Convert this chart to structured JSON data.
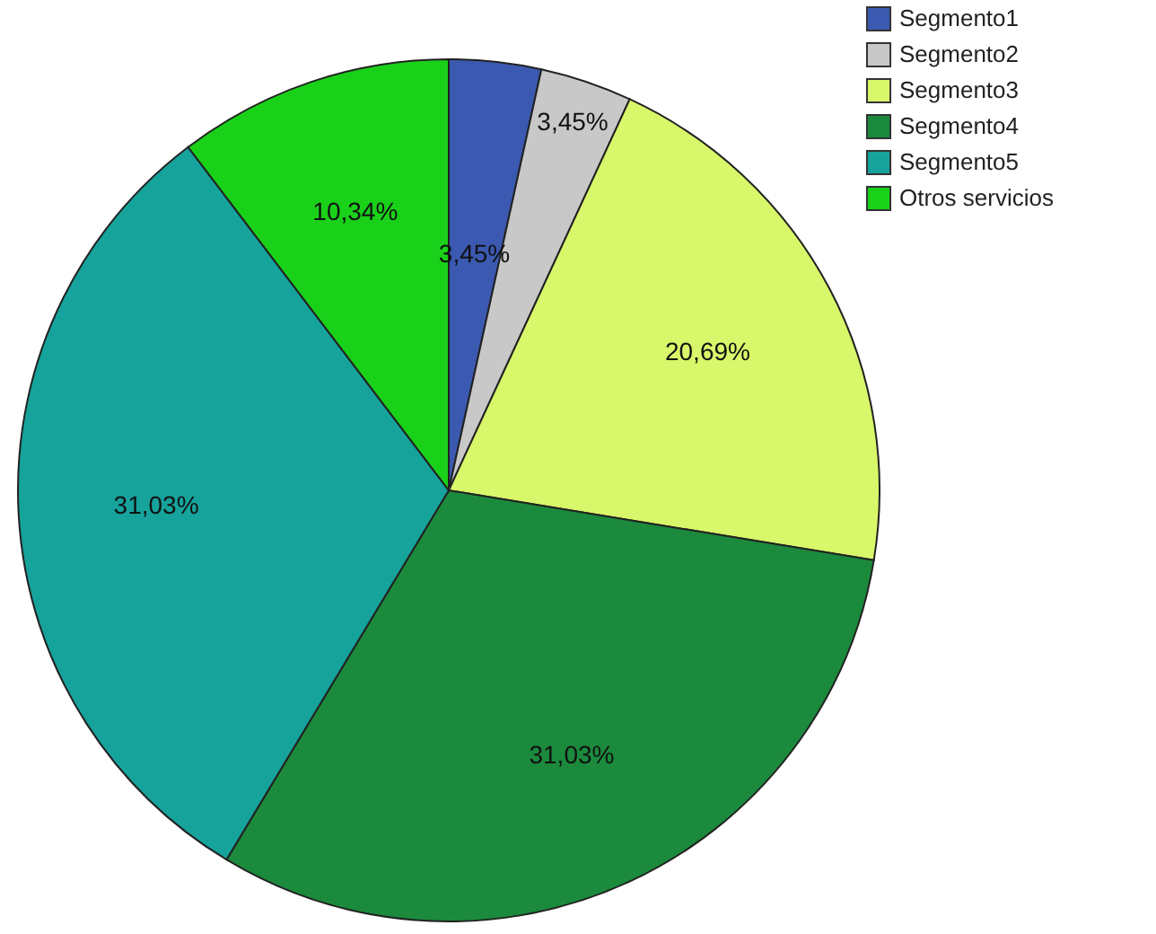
{
  "chart_data": {
    "type": "pie",
    "categories": [
      "Segmento1",
      "Segmento2",
      "Segmento3",
      "Segmento4",
      "Segmento5",
      "Otros servicios"
    ],
    "values": [
      3.45,
      3.45,
      20.69,
      31.03,
      31.03,
      10.34
    ],
    "value_labels": [
      "3,45%",
      "3,45%",
      "20,69%",
      "31,03%",
      "31,03%",
      "10,34%"
    ],
    "colors": [
      "#3b59b0",
      "#c8c8c8",
      "#d8f76a",
      "#1b8a3c",
      "#16a39c",
      "#19d119"
    ],
    "legend": "top right"
  }
}
